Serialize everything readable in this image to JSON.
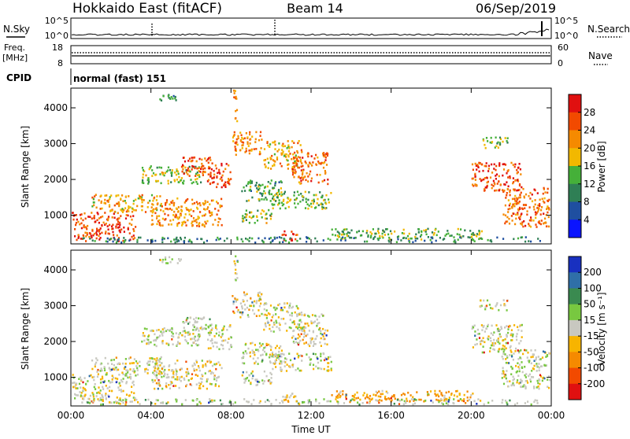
{
  "header": {
    "title": "Hokkaido East (fitACF)",
    "beam": "Beam 14",
    "date": "06/Sep/2019"
  },
  "top_panels": {
    "nsky_label": "N.Sky",
    "nsky_ticks": [
      "10^5",
      "10^0"
    ],
    "nsearch_label": "N.Search",
    "nsearch_ticks": [
      "10^5",
      "10^0"
    ],
    "freq_label_1": "Freq.",
    "freq_label_2": "[MHz]",
    "freq_ticks": [
      "18",
      "8"
    ],
    "nave_label": "Nave",
    "nave_ticks": [
      "60",
      "0"
    ],
    "cpid_label": "CPID",
    "cpid_text": "normal (fast) 151"
  },
  "colors": {
    "power": [
      "#0a14ff",
      "#1f4fa0",
      "#2f7f55",
      "#45b039",
      "#f2b800",
      "#f58a00",
      "#f24a00",
      "#e01010"
    ],
    "velocity": [
      "#e01010",
      "#f24a00",
      "#f58a00",
      "#f7b400",
      "#c8c8c0",
      "#78c840",
      "#3a8a50",
      "#2f6fa8",
      "#1830c0"
    ]
  },
  "chart_data": [
    {
      "type": "heatmap",
      "name": "power",
      "ylabel": "Slant Range [km]",
      "xlabel": "",
      "x_ticks": [
        "00:00",
        "04:00",
        "08:00",
        "12:00",
        "16:00",
        "20:00",
        "00:00"
      ],
      "y_ticks": [
        "1000",
        "2000",
        "3000",
        "4000"
      ],
      "xlim_hours": [
        0,
        24
      ],
      "ylim_km": [
        200,
        4550
      ],
      "colorbar_label": "Power [dB]",
      "colorbar_ticks": [
        "28",
        "24",
        "20",
        "16",
        "12",
        "8",
        "4"
      ],
      "colorbar_range": [
        0,
        32
      ]
    },
    {
      "type": "heatmap",
      "name": "velocity",
      "ylabel": "Slant Range [km]",
      "xlabel": "Time UT",
      "x_ticks": [
        "00:00",
        "04:00",
        "08:00",
        "12:00",
        "16:00",
        "20:00",
        "00:00"
      ],
      "y_ticks": [
        "1000",
        "2000",
        "3000",
        "4000"
      ],
      "xlim_hours": [
        0,
        24
      ],
      "ylim_km": [
        200,
        4550
      ],
      "colorbar_label": "Velocity [m s⁻¹]",
      "colorbar_ticks": [
        "200",
        "100",
        "50",
        "15",
        "-15",
        "-50",
        "-100",
        "-200"
      ],
      "colorbar_range": [
        -250,
        250
      ]
    }
  ],
  "scatter_regions": [
    {
      "t0": 0.0,
      "t1": 3.2,
      "r0": 300,
      "r1": 1100,
      "p": 27,
      "v": 0
    },
    {
      "t0": 1.0,
      "t1": 4.5,
      "r0": 1100,
      "r1": 1600,
      "p": 20,
      "v": 0
    },
    {
      "t0": 4.0,
      "t1": 7.5,
      "r0": 700,
      "r1": 1500,
      "p": 22,
      "v": -5
    },
    {
      "t0": 3.5,
      "t1": 6.5,
      "r0": 1900,
      "r1": 2400,
      "p": 16,
      "v": 0
    },
    {
      "t0": 5.5,
      "t1": 7.0,
      "r0": 2100,
      "r1": 2700,
      "p": 26,
      "v": 5
    },
    {
      "t0": 6.8,
      "t1": 8.0,
      "r0": 1800,
      "r1": 2500,
      "p": 27,
      "v": 0
    },
    {
      "t0": 8.0,
      "t1": 9.5,
      "r0": 2700,
      "r1": 3400,
      "p": 22,
      "v": -10
    },
    {
      "t0": 8.5,
      "t1": 10.5,
      "r0": 1400,
      "r1": 2000,
      "p": 12,
      "v": 0
    },
    {
      "t0": 9.6,
      "t1": 11.5,
      "r0": 2300,
      "r1": 3100,
      "p": 20,
      "v": 0
    },
    {
      "t0": 11.0,
      "t1": 12.8,
      "r0": 1900,
      "r1": 2800,
      "p": 24,
      "v": -5
    },
    {
      "t0": 10.0,
      "t1": 13.0,
      "r0": 1200,
      "r1": 1700,
      "p": 14,
      "v": 0
    },
    {
      "t0": 8.5,
      "t1": 10.0,
      "r0": 800,
      "r1": 1200,
      "p": 16,
      "v": 0
    },
    {
      "t0": 10.5,
      "t1": 11.3,
      "r0": 300,
      "r1": 600,
      "p": 28,
      "v": -30
    },
    {
      "t0": 13.0,
      "t1": 20.5,
      "r0": 350,
      "r1": 650,
      "p": 14,
      "v": -40
    },
    {
      "t0": 20.0,
      "t1": 22.5,
      "r0": 1700,
      "r1": 2500,
      "p": 26,
      "v": 0
    },
    {
      "t0": 21.5,
      "t1": 24.0,
      "r0": 700,
      "r1": 1800,
      "p": 24,
      "v": 0
    },
    {
      "t0": 0.5,
      "t1": 23.5,
      "r0": 200,
      "r1": 420,
      "p": 10,
      "v": 10
    },
    {
      "t0": 8.1,
      "t1": 8.3,
      "r0": 3600,
      "r1": 4550,
      "p": 22,
      "v": 0
    },
    {
      "t0": 4.3,
      "t1": 5.5,
      "r0": 4200,
      "r1": 4400,
      "p": 12,
      "v": 0
    },
    {
      "t0": 20.4,
      "t1": 21.8,
      "r0": 2900,
      "r1": 3200,
      "p": 14,
      "v": 0
    }
  ]
}
